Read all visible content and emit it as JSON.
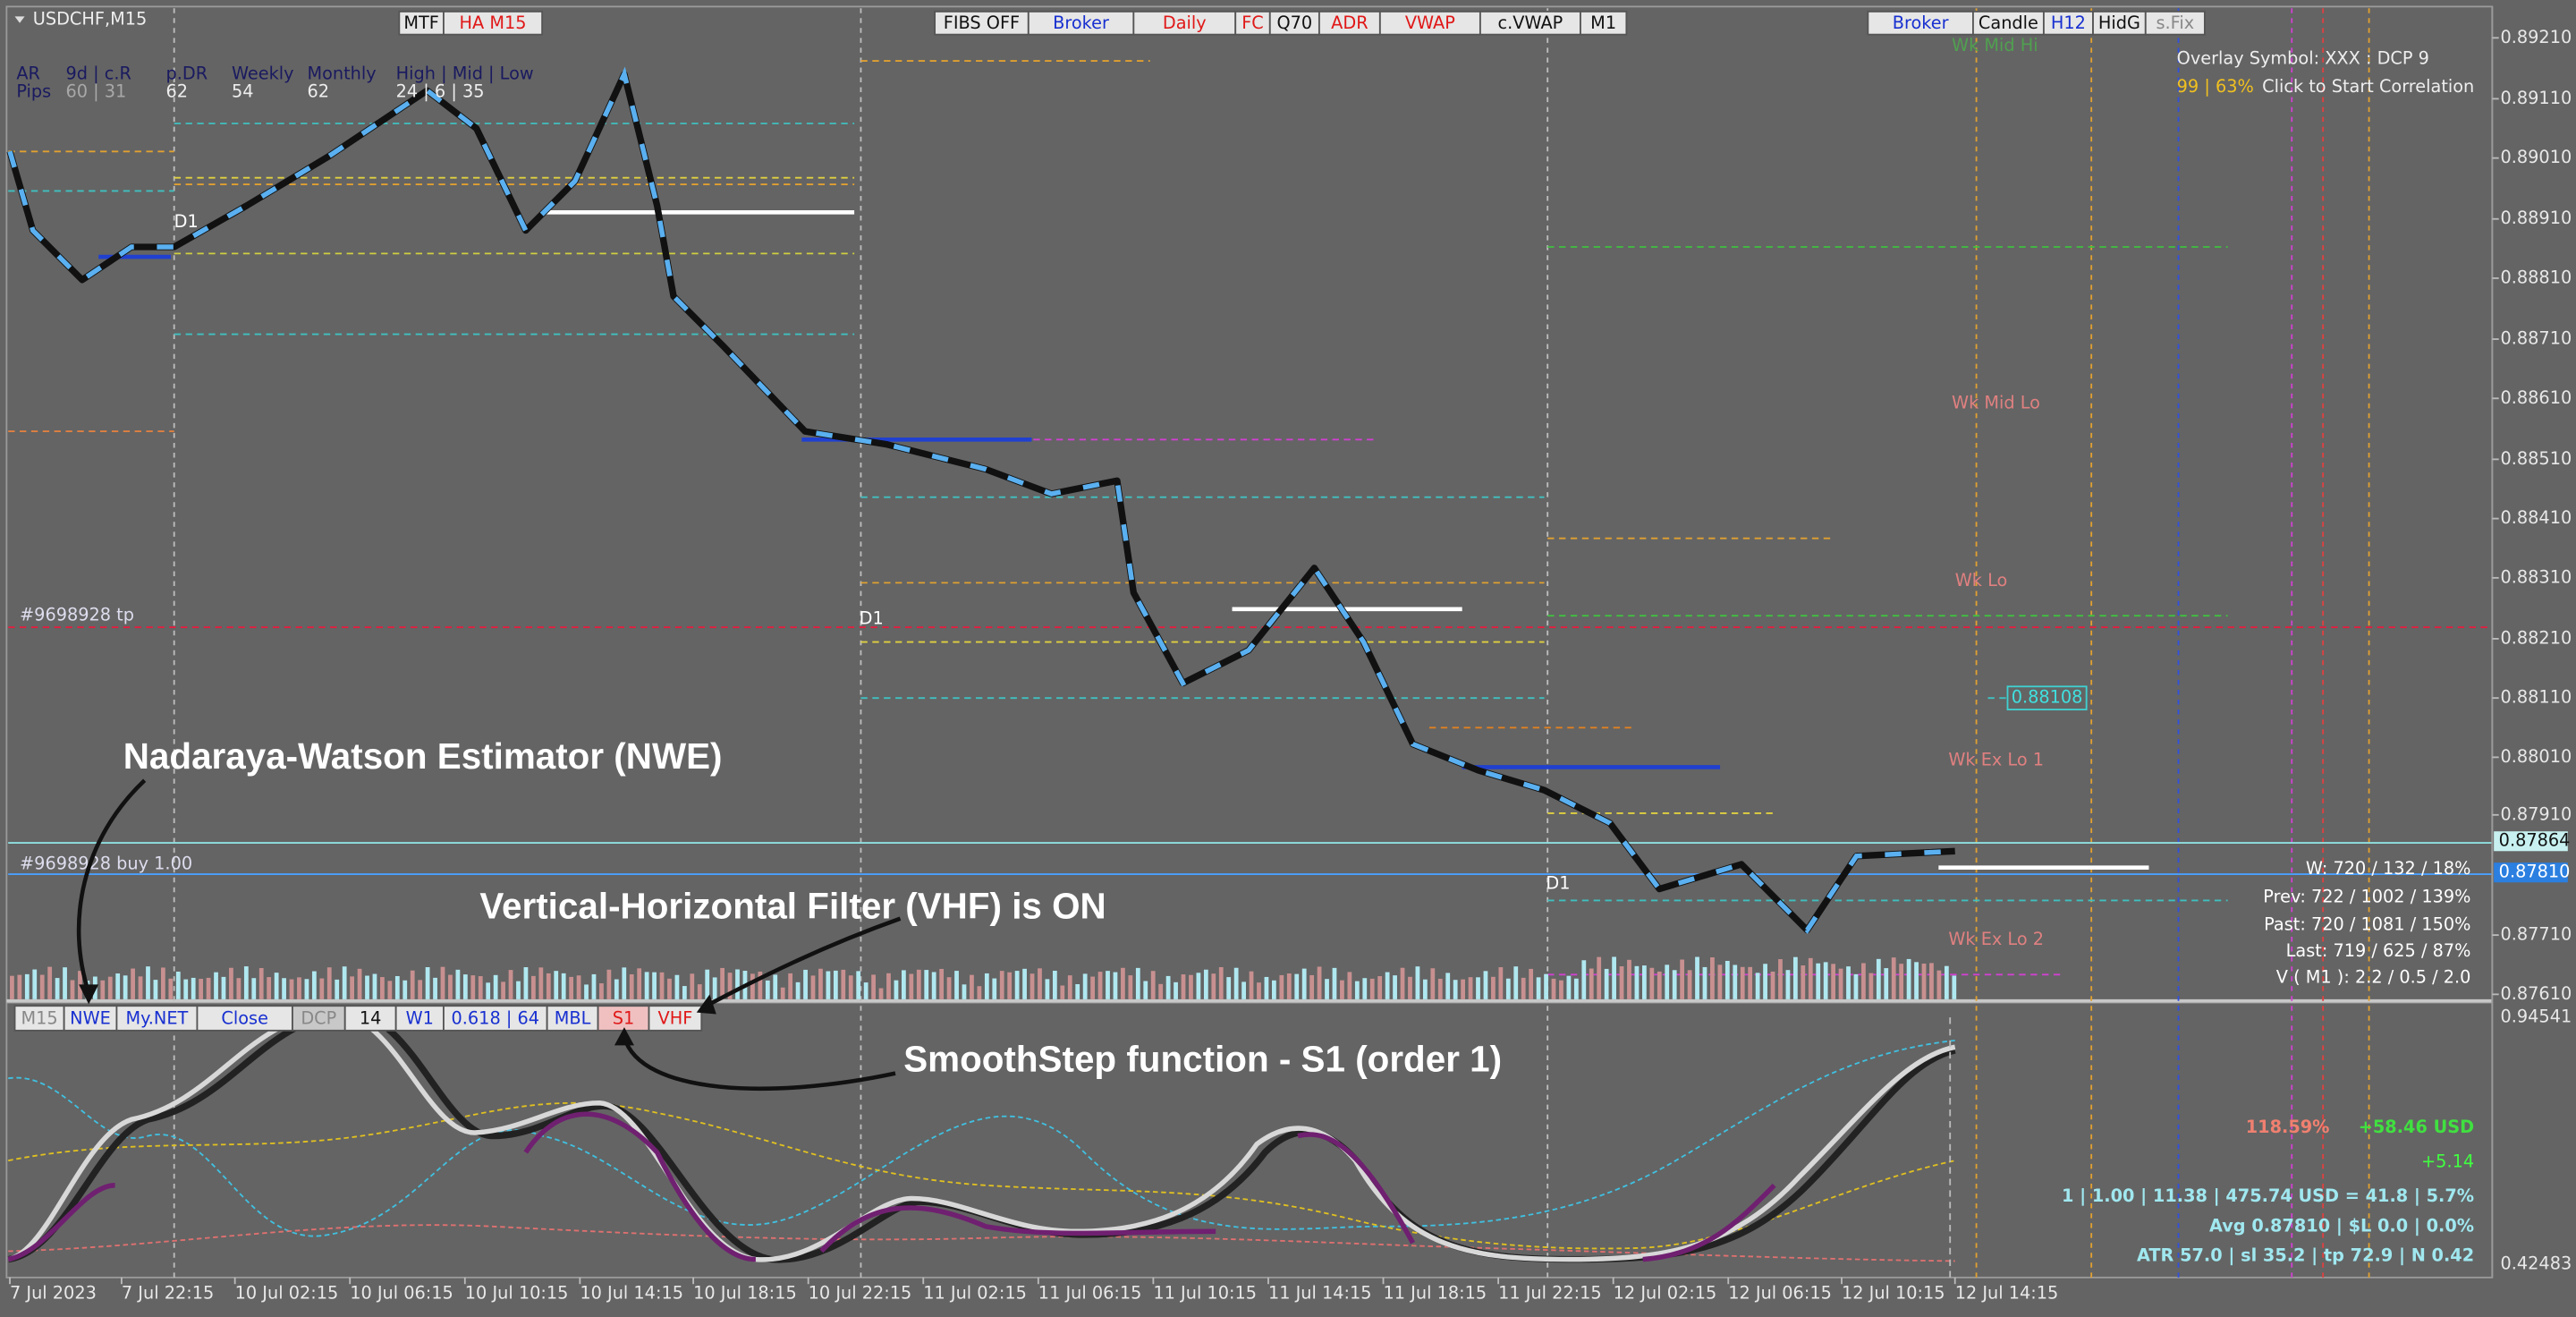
{
  "window": {
    "symbol": "USDCHF,M15"
  },
  "toolbar_left": [
    "MTF",
    "HA M15"
  ],
  "toolbar_center": [
    "FIBS OFF",
    "Broker",
    "Daily",
    "FC",
    "Q70",
    "ADR",
    "VWAP",
    "c.VWAP",
    "M1"
  ],
  "toolbar_right": [
    "Broker",
    "Candle",
    "H12",
    "HidG",
    "s.Fix"
  ],
  "info_table": {
    "headers": [
      "AR",
      "9d | c.R",
      "p.DR",
      "Weekly",
      "Monthly",
      "High | Mid | Low"
    ],
    "row_label": "Pips",
    "values": [
      "60 | 31",
      "62",
      "54",
      "62",
      "24 | 6 | 35"
    ]
  },
  "overlay": {
    "symbol_line": "Overlay Symbol: XXX : DCP 9",
    "percent": "99 | 63%",
    "action": "Click to Start Correlation"
  },
  "price_axis": [
    "0.89210",
    "0.89110",
    "0.89010",
    "0.88910",
    "0.88810",
    "0.88710",
    "0.88610",
    "0.88510",
    "0.88410",
    "0.88310",
    "0.88210",
    "0.88110",
    "0.88010",
    "0.87910",
    "0.87710",
    "0.87610"
  ],
  "price_markers": {
    "ask": "0.87864",
    "bid": "0.87810"
  },
  "levels": [
    "Wk Mid Hi",
    "Wk Mid Lo",
    "Wk Lo",
    "Wk Ex Lo 1",
    "Wk Ex Lo 2"
  ],
  "d1_labels": [
    "D1",
    "D1",
    "D1"
  ],
  "orders": {
    "tp": "#9698928 tp",
    "buy": "#9698928 buy 1.00",
    "price_box": "0.88108"
  },
  "stats": [
    "W: 720 / 132 / 18%",
    "Prev: 722 / 1002 / 139%",
    "Past: 720 / 1081 / 150%",
    "Last: 719 / 625 / 87%",
    "V ( M1 ): 2.2 / 0.5 / 2.0"
  ],
  "indicator_toolbar": [
    "M15",
    "NWE",
    "My.NET",
    "Close",
    "DCP",
    "14",
    "W1",
    "0.618 | 64",
    "MBL",
    "S1",
    "VHF"
  ],
  "indicator_axis": [
    "0.94541",
    "0.42483"
  ],
  "annotations": [
    "Nadaraya-Watson Estimator (NWE)",
    "Vertical-Horizontal Filter (VHF) is ON",
    "SmoothStep function - S1 (order 1)"
  ],
  "account": {
    "percent": "118.59%",
    "profit": "+58.46 USD",
    "pips": "+5.14",
    "position": "1  |  1.00  |  11.38  |  475.74 USD = 41.8  |  5.7%",
    "average": "Avg 0.87810  |  $L 0.0  |  0.0%",
    "atr": "ATR 57.0  |  sl 35.2  |  tp 72.9  |  N 0.42"
  },
  "time_axis": [
    "7 Jul 2023",
    "7 Jul 22:15",
    "10 Jul 02:15",
    "10 Jul 06:15",
    "10 Jul 10:15",
    "10 Jul 14:15",
    "10 Jul 18:15",
    "10 Jul 22:15",
    "11 Jul 02:15",
    "11 Jul 06:15",
    "11 Jul 10:15",
    "11 Jul 14:15",
    "11 Jul 18:15",
    "11 Jul 22:15",
    "12 Jul 02:15",
    "12 Jul 06:15",
    "12 Jul 10:15",
    "12 Jul 14:15"
  ]
}
